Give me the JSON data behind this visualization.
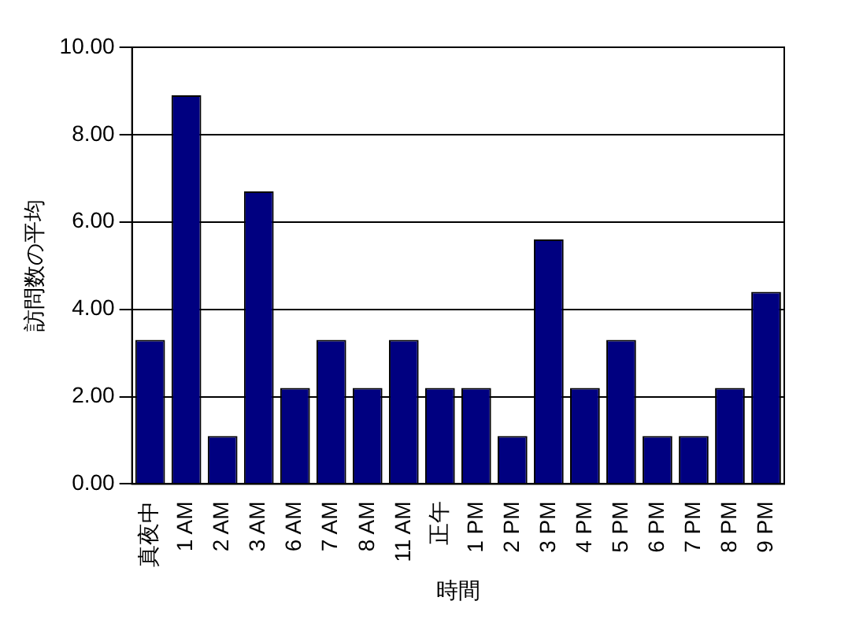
{
  "chart_data": {
    "type": "bar",
    "xlabel": "時間",
    "ylabel": "訪問数の平均",
    "categories": [
      "真夜中",
      "1 AM",
      "2 AM",
      "3 AM",
      "6 AM",
      "7 AM",
      "8 AM",
      "11 AM",
      "正午",
      "1 PM",
      "2 PM",
      "3 PM",
      "4 PM",
      "5 PM",
      "6 PM",
      "7 PM",
      "8 PM",
      "9 PM"
    ],
    "values": [
      3.3,
      8.9,
      1.1,
      6.7,
      2.2,
      3.3,
      2.2,
      3.3,
      2.2,
      2.2,
      1.1,
      5.6,
      2.2,
      3.3,
      1.1,
      1.1,
      2.2,
      4.4
    ],
    "color": "#000080",
    "ylim": [
      0,
      10
    ],
    "yticks": [
      {
        "value": 0,
        "label": "0.00"
      },
      {
        "value": 2,
        "label": "2.00"
      },
      {
        "value": 4,
        "label": "4.00"
      },
      {
        "value": 6,
        "label": "6.00"
      },
      {
        "value": 8,
        "label": "8.00"
      },
      {
        "value": 10,
        "label": "10.00"
      }
    ],
    "grid": "y",
    "legend": false
  }
}
